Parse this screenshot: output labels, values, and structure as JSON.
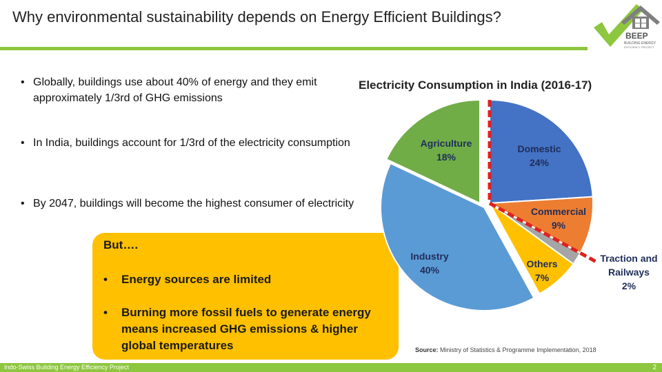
{
  "title": "Why environmental sustainability depends on Energy Efficient Buildings?",
  "logo": {
    "name": "BEEP",
    "subtitle": "BUILDING ENERGY",
    "tagline": "EFFICIENCY PROJECT"
  },
  "bullets": [
    "Globally, buildings use about 40% of energy and they emit approximately 1/3rd of GHG emissions",
    "In India, buildings account for 1/3rd of the electricity consumption",
    "By 2047, buildings will become the highest consumer of electricity"
  ],
  "callout": {
    "heading": "But….",
    "items": [
      "Energy sources are limited",
      "Burning more fossil fuels to generate energy means increased GHG emissions & higher global temperatures"
    ]
  },
  "chart_data": {
    "type": "pie",
    "title": "Electricity Consumption in India (2016-17)",
    "slices": [
      {
        "label": "Domestic",
        "value": 24,
        "value_label": "24%",
        "color": "#4472c4"
      },
      {
        "label": "Commercial",
        "value": 9,
        "value_label": "9%",
        "color": "#ed7d31"
      },
      {
        "label": "Traction and Railways",
        "value": 2,
        "value_label": "2%",
        "color": "#a5a5a5"
      },
      {
        "label": "Others",
        "value": 7,
        "value_label": "7%",
        "color": "#ffc000"
      },
      {
        "label": "Industry",
        "value": 40,
        "value_label": "40%",
        "color": "#5b9bd5"
      },
      {
        "label": "Agriculture",
        "value": 18,
        "value_label": "18%",
        "color": "#70ad47"
      }
    ],
    "source_label": "Source:",
    "source_text": "Ministry of Statistics & Programme Implementation, 2018"
  },
  "footer": {
    "text": "Indo-Swiss Building Energy Efficiency Project",
    "page": "2"
  },
  "colors": {
    "accent": "#8dc63f",
    "callout": "#ffc000",
    "divider": "#e02020"
  }
}
